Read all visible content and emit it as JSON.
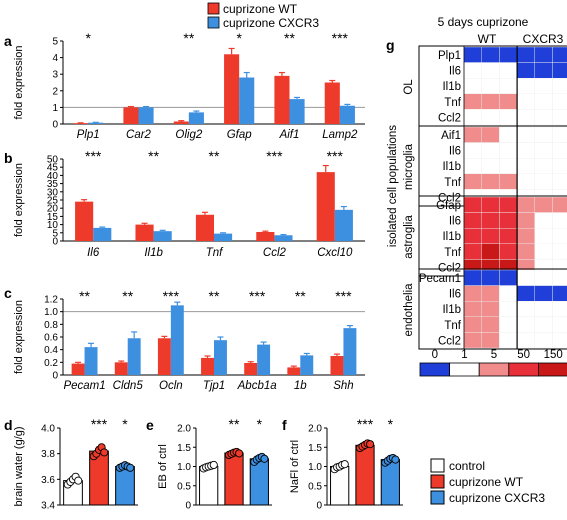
{
  "legend_top": {
    "items": [
      {
        "label": "cuprizone WT",
        "color": "#ee3a2a"
      },
      {
        "label": "cuprizone CXCR3",
        "color": "#3d8fe0"
      }
    ]
  },
  "legend_bottom": {
    "items": [
      {
        "label": "control",
        "color": "#ffffff"
      },
      {
        "label": "cuprizone WT",
        "color": "#ee3a2a"
      },
      {
        "label": "cuprizone CXCR3",
        "color": "#3d8fe0"
      }
    ]
  },
  "colors": {
    "wt": "#ee3a2a",
    "cxcr3": "#3d8fe0",
    "control": "#ffffff"
  },
  "chart_data": [
    {
      "panel": "a",
      "type": "bar",
      "ylabel": "fold expression",
      "categories": [
        "Plp1",
        "Car2",
        "Olig2",
        "Gfap",
        "Aif1",
        "Lamp2"
      ],
      "series": [
        {
          "name": "cuprizone WT",
          "values": [
            0.05,
            1.0,
            0.15,
            4.2,
            2.9,
            2.5
          ],
          "errors": [
            0.02,
            0.05,
            0.05,
            0.35,
            0.2,
            0.12
          ]
        },
        {
          "name": "cuprizone CXCR3",
          "values": [
            0.08,
            1.0,
            0.7,
            2.8,
            1.5,
            1.1
          ],
          "errors": [
            0.02,
            0.05,
            0.08,
            0.3,
            0.1,
            0.08
          ]
        }
      ],
      "significance": [
        "*",
        "",
        "**",
        "*",
        "**",
        "***"
      ],
      "ylim": [
        0,
        5
      ],
      "yticks": [
        0,
        1,
        2,
        3,
        4,
        5
      ],
      "reference_line": 1
    },
    {
      "panel": "b",
      "type": "bar",
      "ylabel": "fold expression",
      "categories": [
        "Il6",
        "Il1b",
        "Tnf",
        "Ccl2",
        "Cxcl10"
      ],
      "series": [
        {
          "name": "cuprizone WT",
          "values": [
            24,
            10,
            16,
            5.5,
            42
          ],
          "errors": [
            1.2,
            0.8,
            1.5,
            0.5,
            4
          ]
        },
        {
          "name": "cuprizone CXCR3",
          "values": [
            8,
            6,
            4.5,
            3.5,
            19
          ],
          "errors": [
            0.5,
            0.5,
            0.5,
            0.4,
            2
          ]
        }
      ],
      "significance": [
        "***",
        "**",
        "**",
        "***",
        "***"
      ],
      "ylim": [
        0,
        50
      ],
      "yticks": [
        0,
        5,
        10,
        15,
        20,
        25,
        30,
        35,
        40,
        45,
        50
      ]
    },
    {
      "panel": "c",
      "type": "bar",
      "ylabel": "fold expression",
      "categories": [
        "Pecam1",
        "Cldn5",
        "Ocln",
        "Tjp1",
        "Abcb1a",
        "1b",
        "Shh"
      ],
      "series": [
        {
          "name": "cuprizone WT",
          "values": [
            0.18,
            0.2,
            0.58,
            0.27,
            0.19,
            0.12,
            0.3
          ],
          "errors": [
            0.02,
            0.02,
            0.03,
            0.03,
            0.02,
            0.02,
            0.03
          ]
        },
        {
          "name": "cuprizone CXCR3",
          "values": [
            0.44,
            0.58,
            1.1,
            0.55,
            0.48,
            0.31,
            0.74
          ],
          "errors": [
            0.06,
            0.1,
            0.05,
            0.05,
            0.04,
            0.03,
            0.04
          ]
        }
      ],
      "significance": [
        "**",
        "**",
        "***",
        "**",
        "***",
        "**",
        "***"
      ],
      "ylim": [
        0,
        1.2
      ],
      "yticks": [
        "0",
        "0.2",
        "0.4",
        "0.6",
        "0.8",
        "1.0",
        "1.2"
      ],
      "reference_line": 1
    },
    {
      "panel": "d",
      "type": "bar",
      "ylabel": "brain water (g/g)",
      "categories": [
        "control",
        "cuprizone WT",
        "cuprizone CXCR3"
      ],
      "values": [
        3.59,
        3.82,
        3.7
      ],
      "errors": [
        0.02,
        0.03,
        0.01
      ],
      "points": [
        [
          3.56,
          3.58,
          3.6,
          3.62,
          3.59
        ],
        [
          3.78,
          3.8,
          3.83,
          3.85,
          3.81
        ],
        [
          3.69,
          3.7,
          3.71,
          3.7,
          3.69
        ]
      ],
      "significance": [
        "",
        "***",
        "*"
      ],
      "ylim": [
        3.4,
        4.0
      ],
      "yticks": [
        "3.4",
        "3.6",
        "3.8",
        "4.0"
      ]
    },
    {
      "panel": "e",
      "type": "bar",
      "ylabel": "EB of ctrl",
      "categories": [
        "control",
        "cuprizone WT",
        "cuprizone CXCR3"
      ],
      "values": [
        1.0,
        1.35,
        1.2
      ],
      "errors": [
        0.03,
        0.04,
        0.05
      ],
      "points": [
        [
          0.95,
          0.98,
          1.0,
          1.02,
          1.04
        ],
        [
          1.3,
          1.33,
          1.36,
          1.38,
          1.34
        ],
        [
          1.12,
          1.18,
          1.22,
          1.25,
          1.2
        ]
      ],
      "significance": [
        "",
        "**",
        "*"
      ],
      "ylim": [
        0,
        2.0
      ],
      "yticks": [
        "0",
        "0.5",
        "1.0",
        "1.5",
        "2.0"
      ]
    },
    {
      "panel": "f",
      "type": "bar",
      "ylabel": "NaFl of ctrl",
      "categories": [
        "control",
        "cuprizone WT",
        "cuprizone CXCR3"
      ],
      "values": [
        1.0,
        1.55,
        1.18
      ],
      "errors": [
        0.04,
        0.05,
        0.04
      ],
      "points": [
        [
          0.93,
          0.98,
          1.0,
          1.04,
          1.06
        ],
        [
          1.48,
          1.52,
          1.56,
          1.6,
          1.58
        ],
        [
          1.1,
          1.15,
          1.2,
          1.22,
          1.18
        ]
      ],
      "significance": [
        "",
        "***",
        "*"
      ],
      "ylim": [
        0,
        2.0
      ],
      "yticks": [
        "0",
        "0.5",
        "1.0",
        "1.5",
        "2.0"
      ]
    },
    {
      "panel": "g",
      "type": "heatmap",
      "title": "5 days cuprizone",
      "column_groups": [
        "WT",
        "CXCR3"
      ],
      "side_label": "isolated cell populations",
      "groups": [
        {
          "name": "OL",
          "rows": [
            "Plp1",
            "Il6",
            "Il1b",
            "Tnf",
            "Ccl2"
          ],
          "values": [
            [
              0,
              0,
              0,
              0,
              0,
              0
            ],
            [
              1,
              1,
              1,
              0,
              0,
              0
            ],
            [
              1,
              1,
              1,
              1,
              1,
              1
            ],
            [
              5,
              5,
              5,
              1,
              1,
              1
            ],
            [
              1,
              1,
              1,
              1,
              1,
              1
            ]
          ]
        },
        {
          "name": "microglia",
          "rows": [
            "Aif1",
            "Il6",
            "Il1b",
            "Tnf",
            "Ccl2"
          ],
          "values": [
            [
              5,
              5,
              1,
              1,
              1,
              1
            ],
            [
              1,
              1,
              1,
              1,
              1,
              1
            ],
            [
              1,
              1,
              1,
              1,
              1,
              1
            ],
            [
              5,
              5,
              5,
              1,
              1,
              1
            ],
            [
              1,
              1,
              1,
              1,
              1,
              1
            ]
          ]
        },
        {
          "name": "astroglia",
          "rows": [
            "Gfap",
            "Il6",
            "Il1b",
            "Tnf",
            "Ccl2"
          ],
          "values": [
            [
              50,
              50,
              50,
              5,
              5,
              5
            ],
            [
              50,
              50,
              50,
              5,
              1,
              1
            ],
            [
              50,
              50,
              50,
              5,
              1,
              1
            ],
            [
              50,
              150,
              50,
              5,
              1,
              1
            ],
            [
              150,
              150,
              150,
              5,
              1,
              1
            ]
          ]
        },
        {
          "name": "endothelia",
          "rows": [
            "Pecam1",
            "Il6",
            "Il1b",
            "Tnf",
            "Ccl2"
          ],
          "values": [
            [
              0,
              0,
              0,
              1,
              1,
              1
            ],
            [
              5,
              5,
              1,
              0,
              0,
              0
            ],
            [
              5,
              5,
              1,
              1,
              1,
              1
            ],
            [
              5,
              5,
              1,
              1,
              1,
              1
            ],
            [
              5,
              5,
              1,
              1,
              1,
              1
            ]
          ]
        }
      ],
      "scale": {
        "labels": [
          "0",
          "1",
          "5",
          "50",
          "150"
        ],
        "colors": [
          "#1f3fd8",
          "#ffffff",
          "#f08c8c",
          "#e8303a",
          "#c81818"
        ]
      }
    }
  ]
}
